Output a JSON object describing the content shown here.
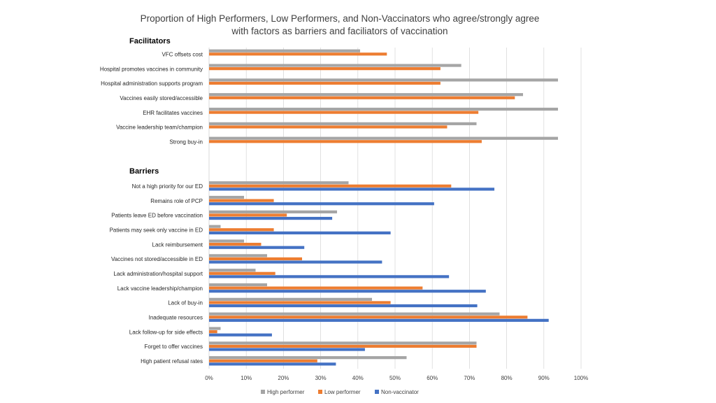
{
  "chart_data": {
    "type": "bar",
    "orientation": "horizontal",
    "title": "Proportion of High Performers, Low Performers, and Non-Vaccinators who agree/strongly agree with factors as barriers and faciliators of vaccination",
    "title_lines": [
      "Proportion of High Performers, Low Performers, and Non-Vaccinators who agree/strongly agree",
      "with factors as barriers and faciliators of vaccination"
    ],
    "xlim": [
      0,
      100
    ],
    "x_ticks": [
      "0%",
      "10%",
      "20%",
      "30%",
      "40%",
      "50%",
      "60%",
      "70%",
      "80%",
      "90%",
      "100%"
    ],
    "grid": true,
    "legend_position": "bottom",
    "series": [
      {
        "name": "High performer",
        "color": "#A5A5A5"
      },
      {
        "name": "Low performer",
        "color": "#ED7D31"
      },
      {
        "name": "Non-vaccinator",
        "color": "#4472C4"
      }
    ],
    "groups": [
      {
        "label": "Facilitators",
        "categories": [
          {
            "label": "VFC offsets cost",
            "values": [
              40.6,
              47.8,
              null
            ]
          },
          {
            "label": "Hospital promotes vaccines in community",
            "values": [
              67.8,
              62.2,
              null
            ]
          },
          {
            "label": "Hospital administration supports program",
            "values": [
              93.8,
              62.2,
              null
            ]
          },
          {
            "label": "Vaccines easily stored/accessible",
            "values": [
              84.4,
              82.2,
              null
            ]
          },
          {
            "label": "EHR facilitates vaccines",
            "values": [
              93.8,
              72.4,
              null
            ]
          },
          {
            "label": "Vaccine leadership team/champion",
            "values": [
              71.9,
              64.0,
              null
            ]
          },
          {
            "label": "Strong buy-in",
            "values": [
              93.8,
              73.3,
              null
            ]
          }
        ]
      },
      {
        "label": "Barriers",
        "categories": [
          {
            "label": "Not a high priority for our ED",
            "values": [
              37.5,
              65.1,
              76.7
            ]
          },
          {
            "label": "Remains role of PCP",
            "values": [
              9.4,
              17.4,
              60.5
            ]
          },
          {
            "label": "Patients leave ED before vaccination",
            "values": [
              34.4,
              20.9,
              33.1
            ]
          },
          {
            "label": "Patients may seek only vaccine in ED",
            "values": [
              3.1,
              17.4,
              48.8
            ]
          },
          {
            "label": "Lack reimbursement",
            "values": [
              9.4,
              14.0,
              25.6
            ]
          },
          {
            "label": "Vaccines not stored/accessible in ED",
            "values": [
              15.6,
              25.0,
              46.5
            ]
          },
          {
            "label": "Lack administration/hospital support",
            "values": [
              12.5,
              17.8,
              64.5
            ]
          },
          {
            "label": "Lack vaccine leadership/champion",
            "values": [
              15.6,
              57.4,
              74.4
            ]
          },
          {
            "label": "Lack of buy-in",
            "values": [
              43.8,
              48.8,
              72.1
            ]
          },
          {
            "label": "Inadequate resources",
            "values": [
              78.1,
              85.6,
              91.3
            ]
          },
          {
            "label": "Lack follow-up for side effects",
            "values": [
              3.1,
              2.2,
              16.9
            ]
          },
          {
            "label": "Forget to offer vaccines",
            "values": [
              71.9,
              71.9,
              41.9
            ]
          },
          {
            "label": "High patient refusal rates",
            "values": [
              53.1,
              29.1,
              34.1
            ]
          }
        ]
      }
    ]
  }
}
